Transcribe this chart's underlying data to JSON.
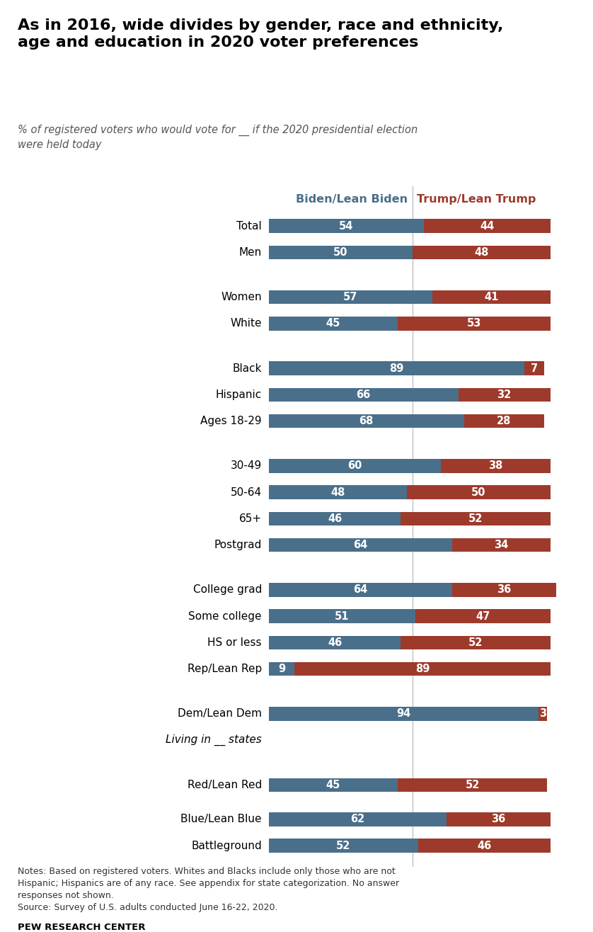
{
  "title": "As in 2016, wide divides by gender, race and ethnicity,\nage and education in 2020 voter preferences",
  "subtitle": "% of registered voters who would vote for __ if the 2020 presidential election\nwere held today",
  "biden_color": "#4a6f8a",
  "trump_color": "#9e3a2b",
  "categories": [
    "Total",
    "Men",
    "Women",
    "White",
    "Black",
    "Hispanic",
    "Ages 18-29",
    "30-49",
    "50-64",
    "65+",
    "Postgrad",
    "College grad",
    "Some college",
    "HS or less",
    "Rep/Lean Rep",
    "Dem/Lean Dem",
    "Living in __ states",
    "Red/Lean Red",
    "Blue/Lean Blue",
    "Battleground"
  ],
  "biden_values": [
    54,
    50,
    57,
    45,
    89,
    66,
    68,
    60,
    48,
    46,
    64,
    64,
    51,
    46,
    9,
    94,
    null,
    45,
    62,
    52
  ],
  "trump_values": [
    44,
    48,
    41,
    53,
    7,
    32,
    28,
    38,
    50,
    52,
    34,
    36,
    47,
    52,
    89,
    3,
    null,
    52,
    36,
    46
  ],
  "italic_rows": [
    "Living in __ states"
  ],
  "extra_space_before": {
    "Men": 0.7,
    "White": 0.7,
    "Ages 18-29": 0.7,
    "Postgrad": 0.7,
    "Rep/Lean Rep": 0.7,
    "Living in __ states": 0.7,
    "Red/Lean Red": 0.3
  },
  "notes_line1": "Notes: Based on registered voters. Whites and Blacks include only those who are not",
  "notes_line2": "Hispanic; Hispanics are of any race. See appendix for state categorization. No answer",
  "notes_line3": "responses not shown.",
  "notes_line4": "Source: Survey of U.S. adults conducted June 16-22, 2020.",
  "source_bold": "PEW RESEARCH CENTER",
  "bar_height": 0.52,
  "fig_width": 8.38,
  "fig_height": 13.16,
  "biden_label": "Biden/Lean Biden",
  "trump_label": "Trump/Lean Trump",
  "pivot_value": 50,
  "scale": 0.62
}
